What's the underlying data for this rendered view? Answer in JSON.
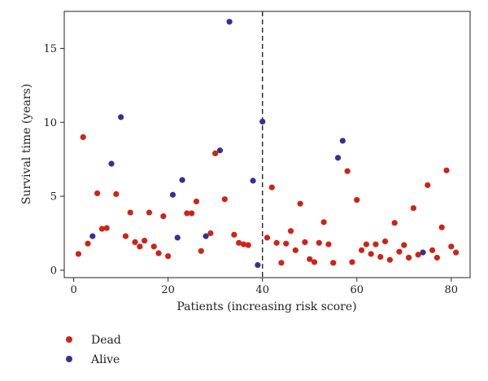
{
  "chart_data": {
    "type": "scatter",
    "xlabel": "Patients (increasing risk score)",
    "ylabel": "Survival time (years)",
    "xlim": [
      -2,
      84
    ],
    "ylim": [
      -0.5,
      17.5
    ],
    "x_ticks": [
      0,
      20,
      40,
      60,
      80
    ],
    "y_ticks": [
      0,
      5,
      10,
      15
    ],
    "cutoff_x": 40,
    "grid": false,
    "legend_placement": "bottom-left",
    "series": [
      {
        "name": "Dead",
        "color": "#cc2418",
        "points": [
          [
            1,
            1.1
          ],
          [
            2,
            9.0
          ],
          [
            3,
            1.8
          ],
          [
            5,
            5.2
          ],
          [
            6,
            2.8
          ],
          [
            7,
            2.85
          ],
          [
            9,
            5.15
          ],
          [
            11,
            2.3
          ],
          [
            12,
            3.9
          ],
          [
            13,
            1.9
          ],
          [
            14,
            1.6
          ],
          [
            15,
            2.0
          ],
          [
            16,
            3.9
          ],
          [
            17,
            1.6
          ],
          [
            18,
            1.15
          ],
          [
            19,
            3.65
          ],
          [
            20,
            0.95
          ],
          [
            24,
            3.85
          ],
          [
            25,
            3.85
          ],
          [
            26,
            4.65
          ],
          [
            27,
            1.3
          ],
          [
            29,
            2.5
          ],
          [
            30,
            7.9
          ],
          [
            32,
            4.8
          ],
          [
            34,
            2.4
          ],
          [
            35,
            1.85
          ],
          [
            36,
            1.75
          ],
          [
            37,
            1.7
          ],
          [
            41,
            2.2
          ],
          [
            42,
            5.6
          ],
          [
            43,
            1.85
          ],
          [
            44,
            0.5
          ],
          [
            45,
            1.8
          ],
          [
            46,
            2.65
          ],
          [
            47,
            1.35
          ],
          [
            48,
            4.5
          ],
          [
            49,
            1.9
          ],
          [
            50,
            0.75
          ],
          [
            51,
            0.55
          ],
          [
            52,
            1.85
          ],
          [
            53,
            3.25
          ],
          [
            54,
            1.75
          ],
          [
            55,
            0.5
          ],
          [
            58,
            6.7
          ],
          [
            59,
            0.55
          ],
          [
            60,
            4.75
          ],
          [
            61,
            1.35
          ],
          [
            62,
            1.75
          ],
          [
            63,
            1.1
          ],
          [
            64,
            1.75
          ],
          [
            65,
            0.9
          ],
          [
            66,
            1.95
          ],
          [
            67,
            0.7
          ],
          [
            68,
            3.2
          ],
          [
            69,
            1.25
          ],
          [
            70,
            1.7
          ],
          [
            71,
            0.85
          ],
          [
            72,
            4.2
          ],
          [
            73,
            1.05
          ],
          [
            75,
            5.75
          ],
          [
            76,
            1.35
          ],
          [
            77,
            0.85
          ],
          [
            78,
            2.9
          ],
          [
            79,
            6.75
          ],
          [
            80,
            1.6
          ],
          [
            81,
            1.2
          ]
        ]
      },
      {
        "name": "Alive",
        "color": "#3a2f8f",
        "points": [
          [
            4,
            2.3
          ],
          [
            8,
            7.2
          ],
          [
            10,
            10.35
          ],
          [
            21,
            5.1
          ],
          [
            22,
            2.2
          ],
          [
            23,
            6.1
          ],
          [
            28,
            2.3
          ],
          [
            31,
            8.1
          ],
          [
            33,
            16.8
          ],
          [
            38,
            6.05
          ],
          [
            39,
            0.35
          ],
          [
            40,
            10.05
          ],
          [
            56,
            7.6
          ],
          [
            57,
            8.75
          ],
          [
            74,
            1.2
          ]
        ]
      }
    ]
  }
}
